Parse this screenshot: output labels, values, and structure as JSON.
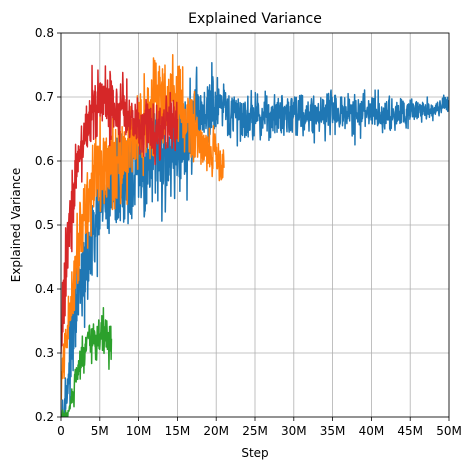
{
  "chart_data": {
    "type": "line",
    "title": "Explained Variance",
    "xlabel": "Step",
    "ylabel": "Explained Variance",
    "xlim": [
      0,
      50000000
    ],
    "ylim": [
      0.2,
      0.8
    ],
    "grid": true,
    "x_ticks": [
      {
        "value": 0,
        "label": "0"
      },
      {
        "value": 5000000,
        "label": "5M"
      },
      {
        "value": 10000000,
        "label": "10M"
      },
      {
        "value": 15000000,
        "label": "15M"
      },
      {
        "value": 20000000,
        "label": "20M"
      },
      {
        "value": 25000000,
        "label": "25M"
      },
      {
        "value": 30000000,
        "label": "30M"
      },
      {
        "value": 35000000,
        "label": "35M"
      },
      {
        "value": 40000000,
        "label": "40M"
      },
      {
        "value": 45000000,
        "label": "45M"
      },
      {
        "value": 50000000,
        "label": "50M"
      }
    ],
    "y_ticks": [
      {
        "value": 0.2,
        "label": "0.2"
      },
      {
        "value": 0.3,
        "label": "0.3"
      },
      {
        "value": 0.4,
        "label": "0.4"
      },
      {
        "value": 0.5,
        "label": "0.5"
      },
      {
        "value": 0.6,
        "label": "0.6"
      },
      {
        "value": 0.7,
        "label": "0.7"
      },
      {
        "value": 0.8,
        "label": "0.8"
      }
    ],
    "series": [
      {
        "color": "#1f77b4",
        "x": [
          0,
          500000,
          1000000,
          1500000,
          2000000,
          3000000,
          4000000,
          5000000,
          6000000,
          7000000,
          8000000,
          9000000,
          10000000,
          11000000,
          12000000,
          13000000,
          14000000,
          15000000,
          16000000,
          17000000,
          18000000,
          19000000,
          20000000,
          22000000,
          25000000,
          28000000,
          30000000,
          32000000,
          35000000,
          38000000,
          40000000,
          42000000,
          44000000,
          46000000,
          48000000,
          50000000
        ],
        "values": [
          0.2,
          0.22,
          0.27,
          0.32,
          0.38,
          0.42,
          0.47,
          0.52,
          0.55,
          0.56,
          0.57,
          0.58,
          0.58,
          0.59,
          0.6,
          0.6,
          0.61,
          0.62,
          0.63,
          0.65,
          0.67,
          0.68,
          0.68,
          0.67,
          0.67,
          0.67,
          0.68,
          0.67,
          0.68,
          0.67,
          0.68,
          0.67,
          0.68,
          0.68,
          0.68,
          0.69
        ],
        "spread": [
          0.02,
          0.03,
          0.04,
          0.05,
          0.05,
          0.05,
          0.06,
          0.06,
          0.06,
          0.06,
          0.06,
          0.06,
          0.06,
          0.06,
          0.06,
          0.06,
          0.06,
          0.06,
          0.06,
          0.06,
          0.05,
          0.05,
          0.04,
          0.03,
          0.025,
          0.025,
          0.025,
          0.025,
          0.025,
          0.025,
          0.025,
          0.025,
          0.02,
          0.015,
          0.01,
          0.01
        ]
      },
      {
        "color": "#ff7f0e",
        "x": [
          0,
          500000,
          1000000,
          1500000,
          2000000,
          2500000,
          3000000,
          4000000,
          5000000,
          6000000,
          7000000,
          8000000,
          9000000,
          10000000,
          11000000,
          12000000,
          13000000,
          14000000,
          15000000,
          16000000,
          17000000,
          18000000,
          19000000,
          20000000,
          21000000
        ],
        "values": [
          0.25,
          0.3,
          0.35,
          0.4,
          0.45,
          0.5,
          0.52,
          0.56,
          0.58,
          0.59,
          0.6,
          0.61,
          0.63,
          0.66,
          0.68,
          0.69,
          0.7,
          0.7,
          0.69,
          0.67,
          0.65,
          0.63,
          0.62,
          0.61,
          0.6
        ],
        "spread": [
          0.02,
          0.03,
          0.03,
          0.04,
          0.04,
          0.05,
          0.05,
          0.05,
          0.05,
          0.05,
          0.05,
          0.05,
          0.05,
          0.05,
          0.06,
          0.05,
          0.05,
          0.05,
          0.05,
          0.05,
          0.04,
          0.03,
          0.03,
          0.03,
          0.03
        ]
      },
      {
        "color": "#2ca02c",
        "x": [
          0,
          250000,
          500000,
          750000,
          1000000,
          1250000,
          1500000,
          1750000,
          2000000,
          2500000,
          3000000,
          3500000,
          4000000,
          4500000,
          5000000,
          5500000,
          6000000,
          6500000
        ],
        "values": [
          0.2,
          0.2,
          0.2,
          0.2,
          0.21,
          0.22,
          0.23,
          0.25,
          0.26,
          0.28,
          0.3,
          0.31,
          0.32,
          0.32,
          0.33,
          0.33,
          0.32,
          0.31
        ],
        "spread": [
          0.01,
          0.01,
          0.01,
          0.01,
          0.01,
          0.015,
          0.02,
          0.02,
          0.02,
          0.025,
          0.025,
          0.025,
          0.025,
          0.025,
          0.025,
          0.025,
          0.025,
          0.025
        ]
      },
      {
        "color": "#d62728",
        "x": [
          0,
          300000,
          600000,
          1000000,
          1500000,
          2000000,
          2500000,
          3000000,
          3500000,
          4000000,
          4500000,
          5000000,
          6000000,
          7000000,
          8000000,
          9000000,
          10000000,
          11000000,
          12000000,
          13000000,
          14000000,
          15000000
        ],
        "values": [
          0.3,
          0.38,
          0.44,
          0.5,
          0.55,
          0.58,
          0.61,
          0.64,
          0.66,
          0.68,
          0.69,
          0.69,
          0.69,
          0.68,
          0.68,
          0.67,
          0.66,
          0.66,
          0.65,
          0.65,
          0.66,
          0.65
        ],
        "spread": [
          0.04,
          0.05,
          0.05,
          0.05,
          0.05,
          0.04,
          0.04,
          0.04,
          0.04,
          0.04,
          0.04,
          0.04,
          0.04,
          0.04,
          0.04,
          0.04,
          0.035,
          0.035,
          0.035,
          0.035,
          0.03,
          0.03
        ]
      }
    ]
  }
}
